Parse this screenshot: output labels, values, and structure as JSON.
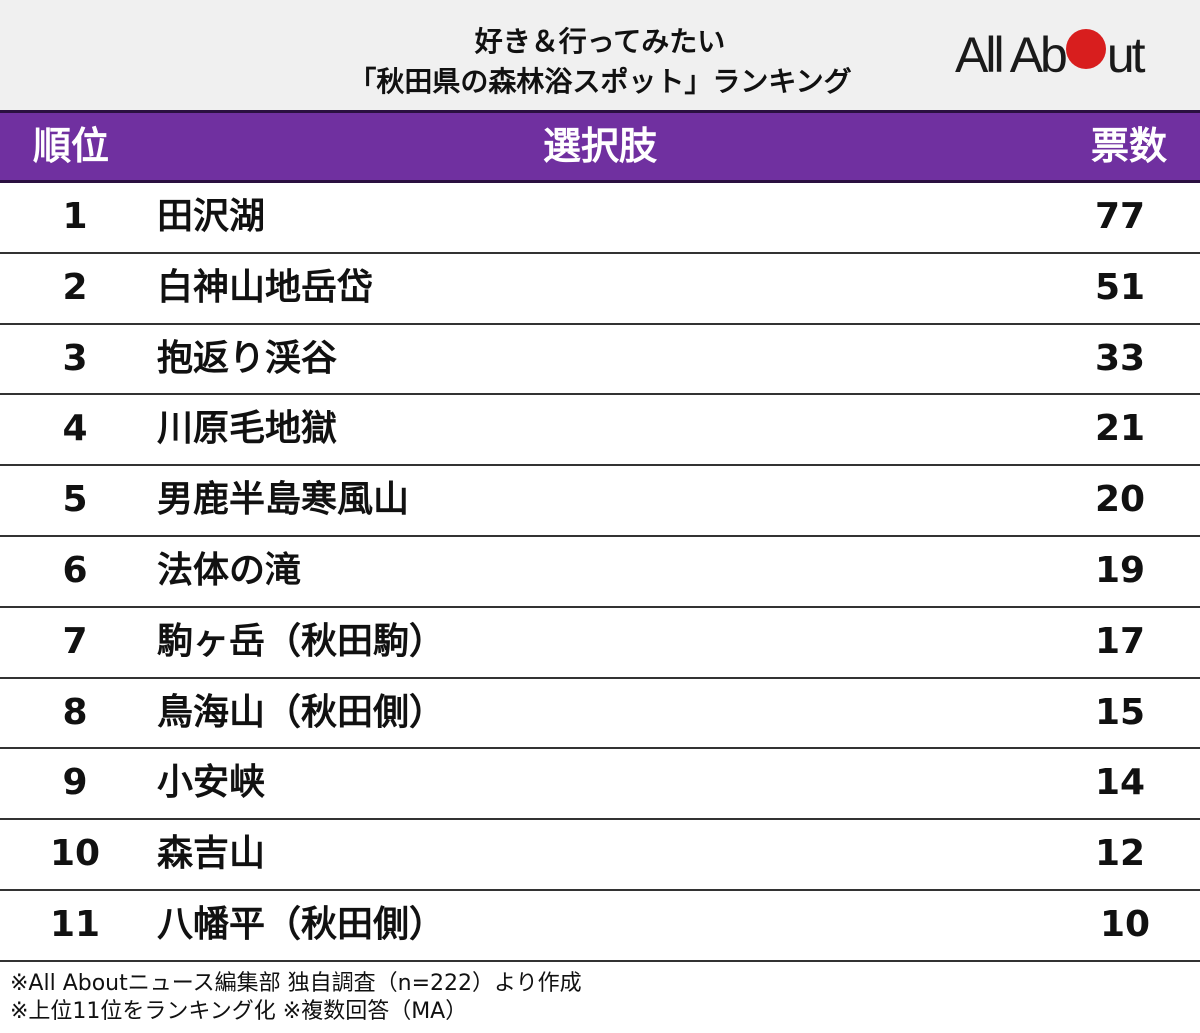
{
  "title": {
    "line1": "好き＆行ってみたい",
    "line2": "「秋田県の森林浴スポット」ランキング"
  },
  "logo": {
    "text_before": "All Ab",
    "text_after": "ut",
    "dot_color": "#d81e1e",
    "label": "All About"
  },
  "colors": {
    "header_bg": "#7030a0",
    "title_bg": "#f0f0f0",
    "header_text": "#ffffff"
  },
  "table": {
    "headers": {
      "rank": "順位",
      "choice": "選択肢",
      "votes": "票数"
    },
    "rows": [
      {
        "rank": "1",
        "name": "田沢湖",
        "votes": "77"
      },
      {
        "rank": "2",
        "name": "白神山地岳岱",
        "votes": "51"
      },
      {
        "rank": "3",
        "name": "抱返り渓谷",
        "votes": "33"
      },
      {
        "rank": "4",
        "name": "川原毛地獄",
        "votes": "21"
      },
      {
        "rank": "5",
        "name": "男鹿半島寒風山",
        "votes": "20"
      },
      {
        "rank": "6",
        "name": "法体の滝",
        "votes": "19"
      },
      {
        "rank": "7",
        "name": "駒ヶ岳（秋田駒）",
        "votes": "17"
      },
      {
        "rank": "8",
        "name": "鳥海山（秋田側）",
        "votes": "15"
      },
      {
        "rank": "9",
        "name": "小安峡",
        "votes": "14"
      },
      {
        "rank": "10",
        "name": "森吉山",
        "votes": "12"
      },
      {
        "rank": "11",
        "name": "八幡平（秋田側）",
        "votes": "10"
      }
    ]
  },
  "notes": [
    "※All Aboutニュース編集部 独自調査（n=222）より作成",
    "※上位11位をランキング化  ※複数回答（MA）"
  ]
}
